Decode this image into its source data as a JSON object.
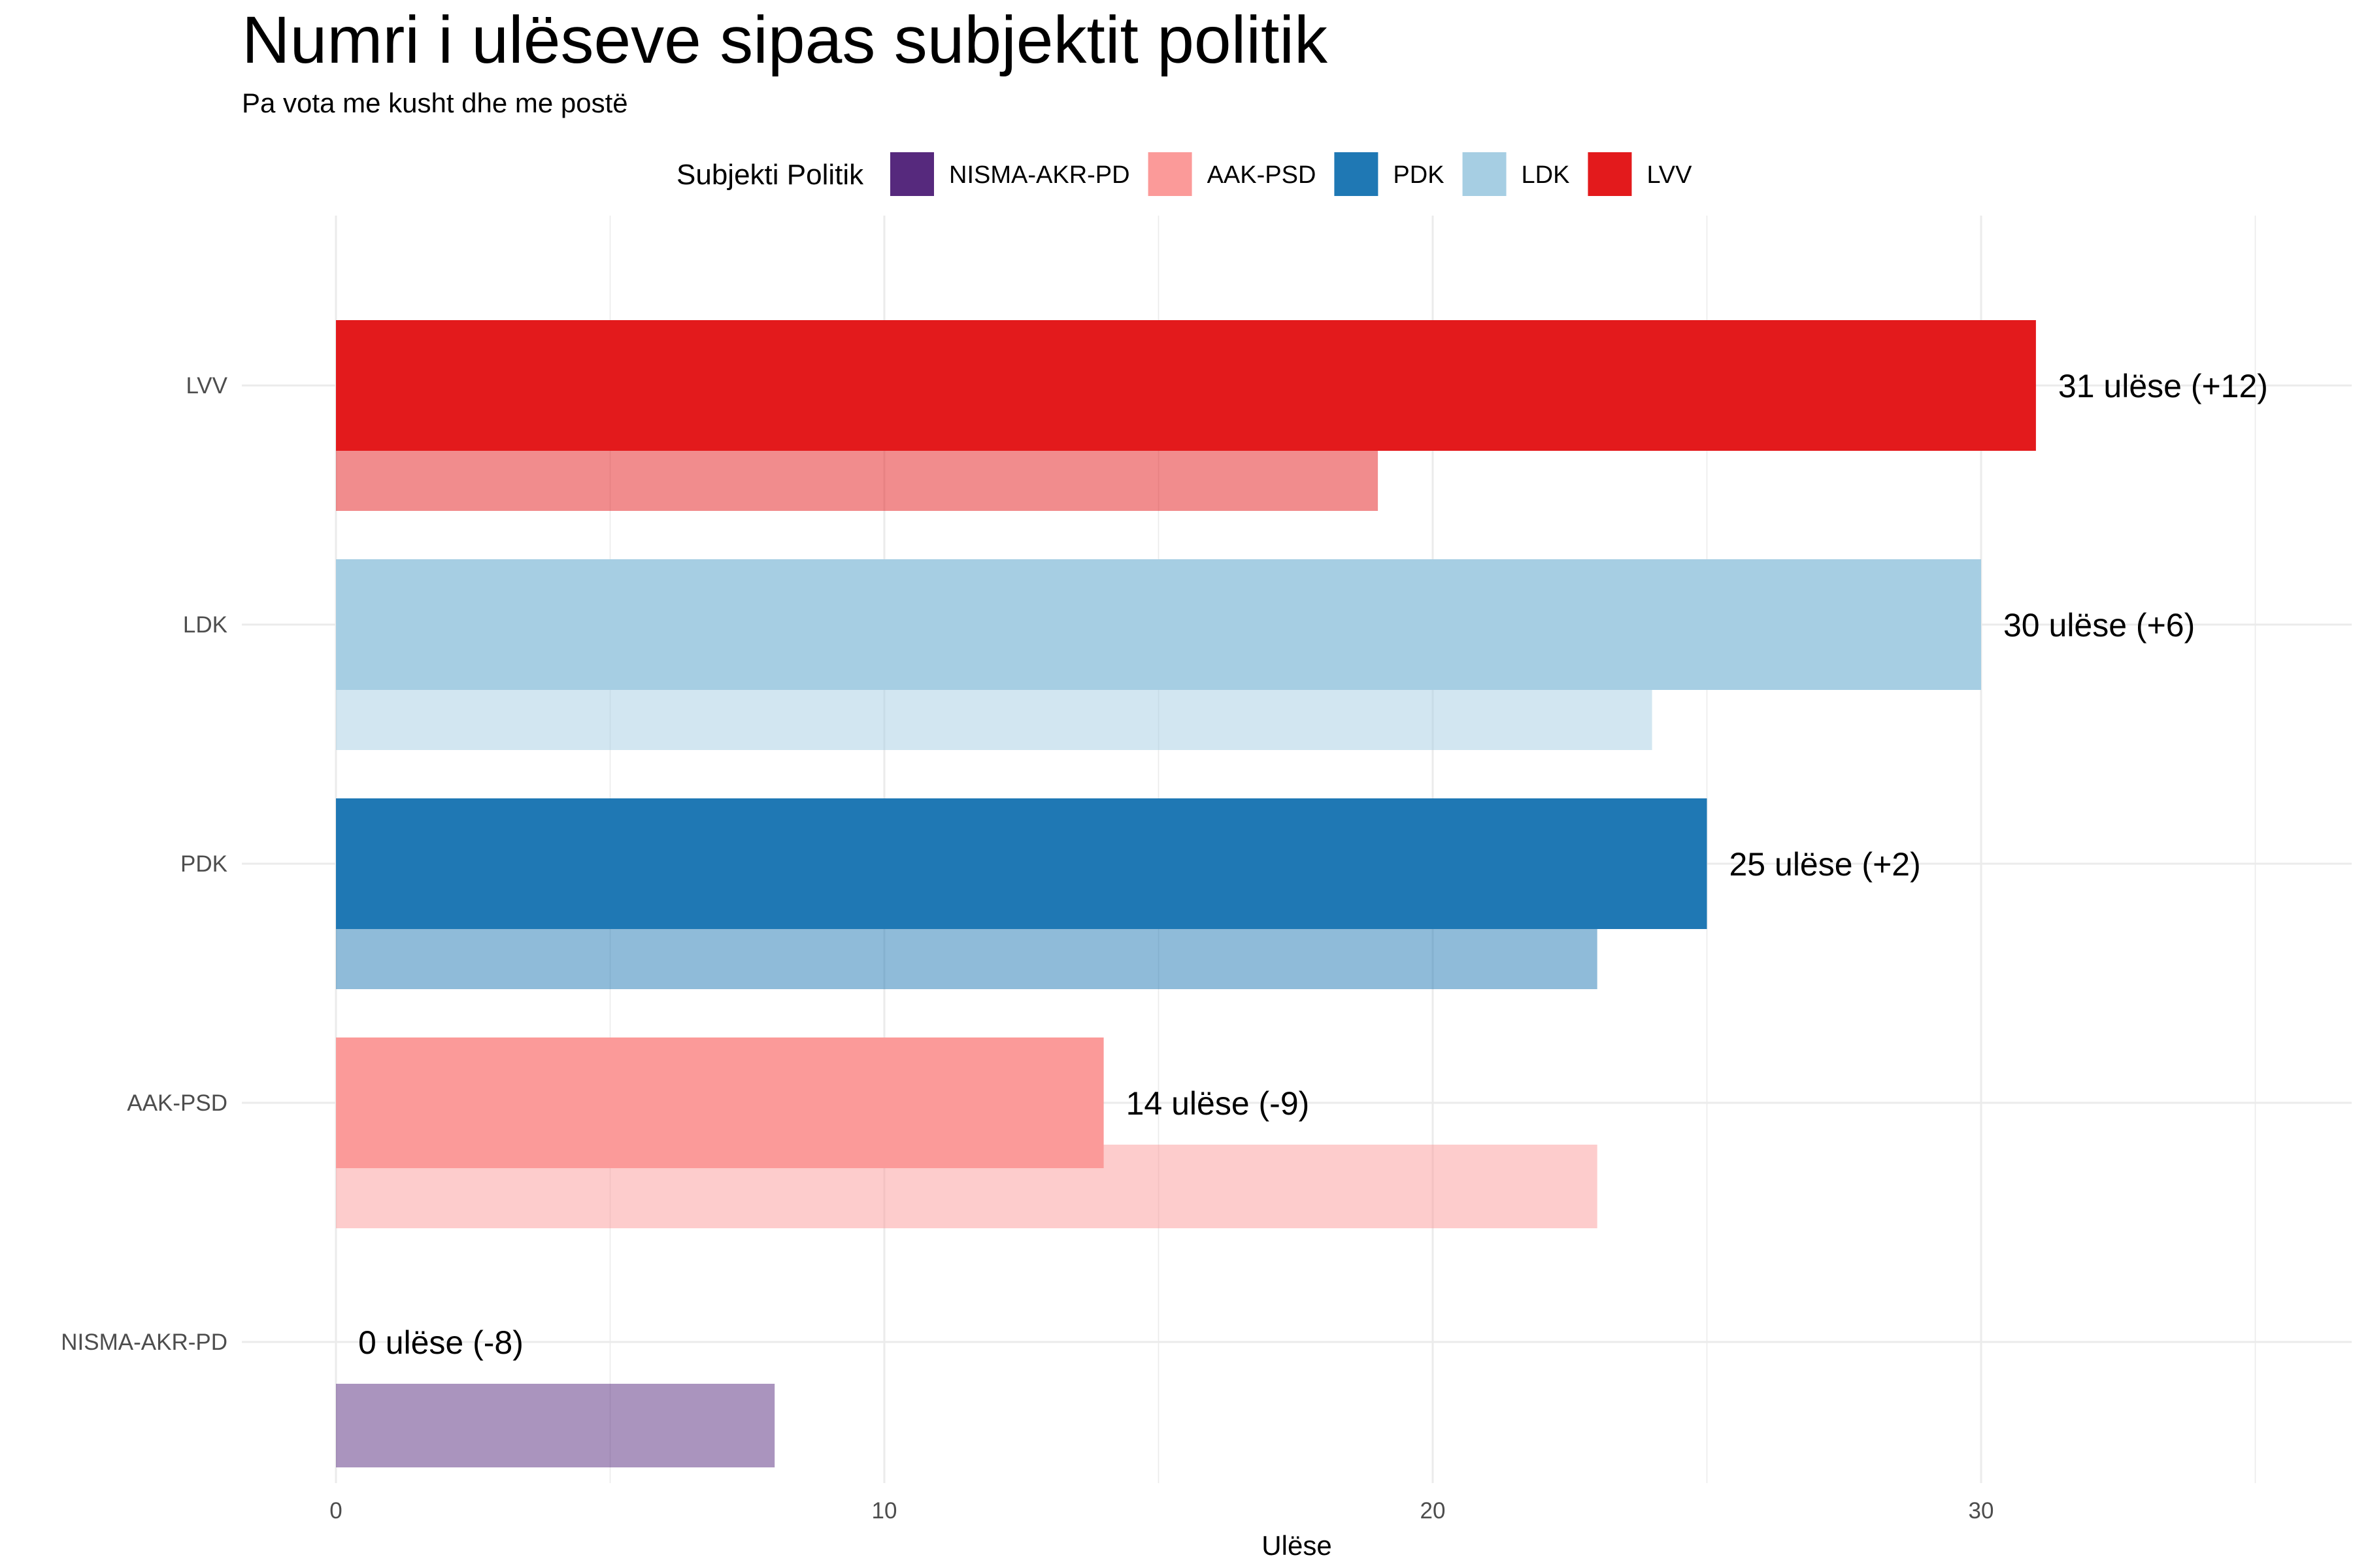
{
  "chart_data": {
    "type": "bar",
    "orientation": "horizontal",
    "title": "Numri i ulëseve sipas subjektit politik",
    "subtitle": "Pa vota me kusht dhe me postë",
    "xlabel": "Ulëse",
    "ylabel": "",
    "xlim": [
      0,
      36
    ],
    "x_ticks": [
      "0",
      "10",
      "20",
      "30"
    ],
    "grid": true,
    "legend": {
      "title": "Subjekti Politik",
      "placement": "top",
      "items": [
        {
          "label": "NISMA-AKR-PD",
          "color": "#56297d"
        },
        {
          "label": "AAK-PSD",
          "color": "#fb9a99"
        },
        {
          "label": "PDK",
          "color": "#1f78b4"
        },
        {
          "label": "LDK",
          "color": "#a6cee3"
        },
        {
          "label": "LVV",
          "color": "#e31a1c"
        }
      ]
    },
    "categories": [
      "LVV",
      "LDK",
      "PDK",
      "AAK-PSD",
      "NISMA-AKR-PD"
    ],
    "colors": [
      "#e31a1c",
      "#a6cee3",
      "#1f78b4",
      "#fb9a99",
      "#56297d"
    ],
    "series": [
      {
        "values": [
          31,
          30,
          25,
          14,
          0
        ]
      },
      {
        "values": [
          19,
          24,
          23,
          23,
          8
        ]
      }
    ],
    "bar_labels": [
      "31 ulëse (+12)",
      "30 ulëse (+6)",
      "25 ulëse (+2)",
      "14 ulëse (-9)",
      "0 ulëse (-8)"
    ]
  }
}
